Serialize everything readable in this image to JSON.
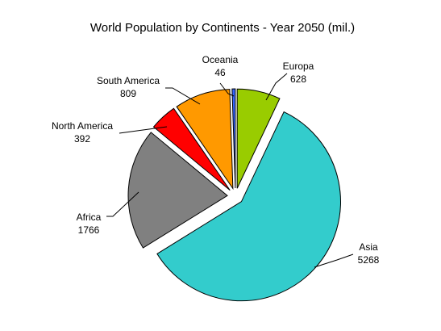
{
  "chart_data": {
    "type": "pie",
    "title": "World Population by Continents - Year 2050 (mil.)",
    "categories": [
      "Europa",
      "Asia",
      "Africa",
      "North America",
      "South America",
      "Oceania"
    ],
    "values": [
      628,
      5268,
      1766,
      392,
      809,
      46
    ],
    "colors": [
      "#99cc00",
      "#33cccc",
      "#808080",
      "#ff0000",
      "#ff9900",
      "#3366ff"
    ],
    "exploded": true,
    "legend": "none",
    "labels_show": "category and value"
  }
}
